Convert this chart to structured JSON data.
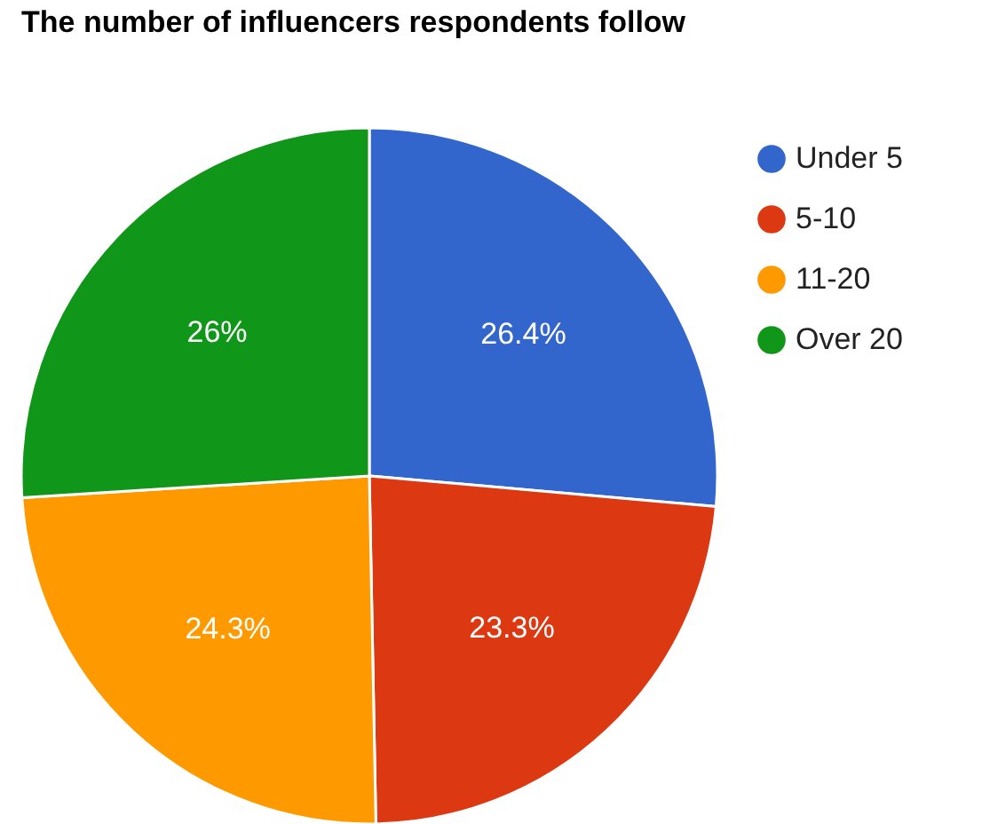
{
  "chart_data": {
    "type": "pie",
    "title": "The number of influencers respondents follow",
    "categories": [
      "Under 5",
      "5-10",
      "11-20",
      "Over 20"
    ],
    "values": [
      26.4,
      23.3,
      24.3,
      26
    ],
    "value_labels": [
      "26.4%",
      "23.3%",
      "24.3%",
      "26%"
    ],
    "colors": [
      "#3366cc",
      "#dc3912",
      "#ff9900",
      "#109618"
    ],
    "legend": "right"
  }
}
